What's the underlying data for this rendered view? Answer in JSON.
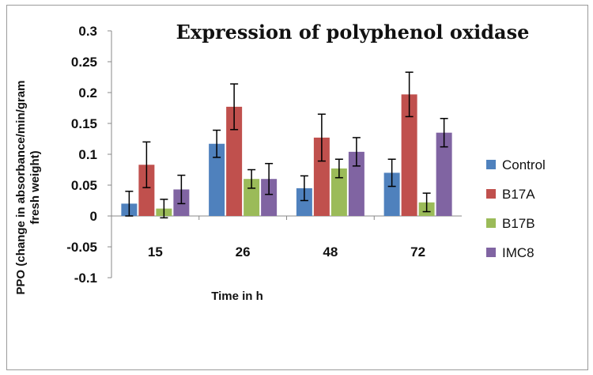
{
  "chart_data": {
    "type": "bar",
    "title": "Expression of polyphenol oxidase",
    "xlabel": "Time in h",
    "ylabel_line1": "PPO (change in absorbance/min/gram",
    "ylabel_line2": "fresh weight)",
    "categories": [
      "15",
      "26",
      "48",
      "72"
    ],
    "ylim": [
      -0.1,
      0.3
    ],
    "yticks": [
      "0.3",
      "0.25",
      "0.2",
      "0.15",
      "0.1",
      "0.05",
      "0",
      "-0.05",
      "-0.1"
    ],
    "legend_position": "right",
    "series": [
      {
        "name": "Control",
        "color": "#4f81bd",
        "values": [
          0.02,
          0.117,
          0.045,
          0.07
        ],
        "errors": [
          0.02,
          0.022,
          0.02,
          0.022
        ]
      },
      {
        "name": "B17A",
        "color": "#c0504d",
        "values": [
          0.083,
          0.177,
          0.127,
          0.197
        ],
        "errors": [
          0.037,
          0.037,
          0.038,
          0.036
        ]
      },
      {
        "name": "B17B",
        "color": "#9bbb59",
        "values": [
          0.012,
          0.06,
          0.077,
          0.022
        ],
        "errors": [
          0.015,
          0.015,
          0.015,
          0.015
        ]
      },
      {
        "name": "IMC8",
        "color": "#8064a2",
        "values": [
          0.043,
          0.06,
          0.104,
          0.135
        ],
        "errors": [
          0.023,
          0.025,
          0.023,
          0.023
        ]
      }
    ]
  }
}
